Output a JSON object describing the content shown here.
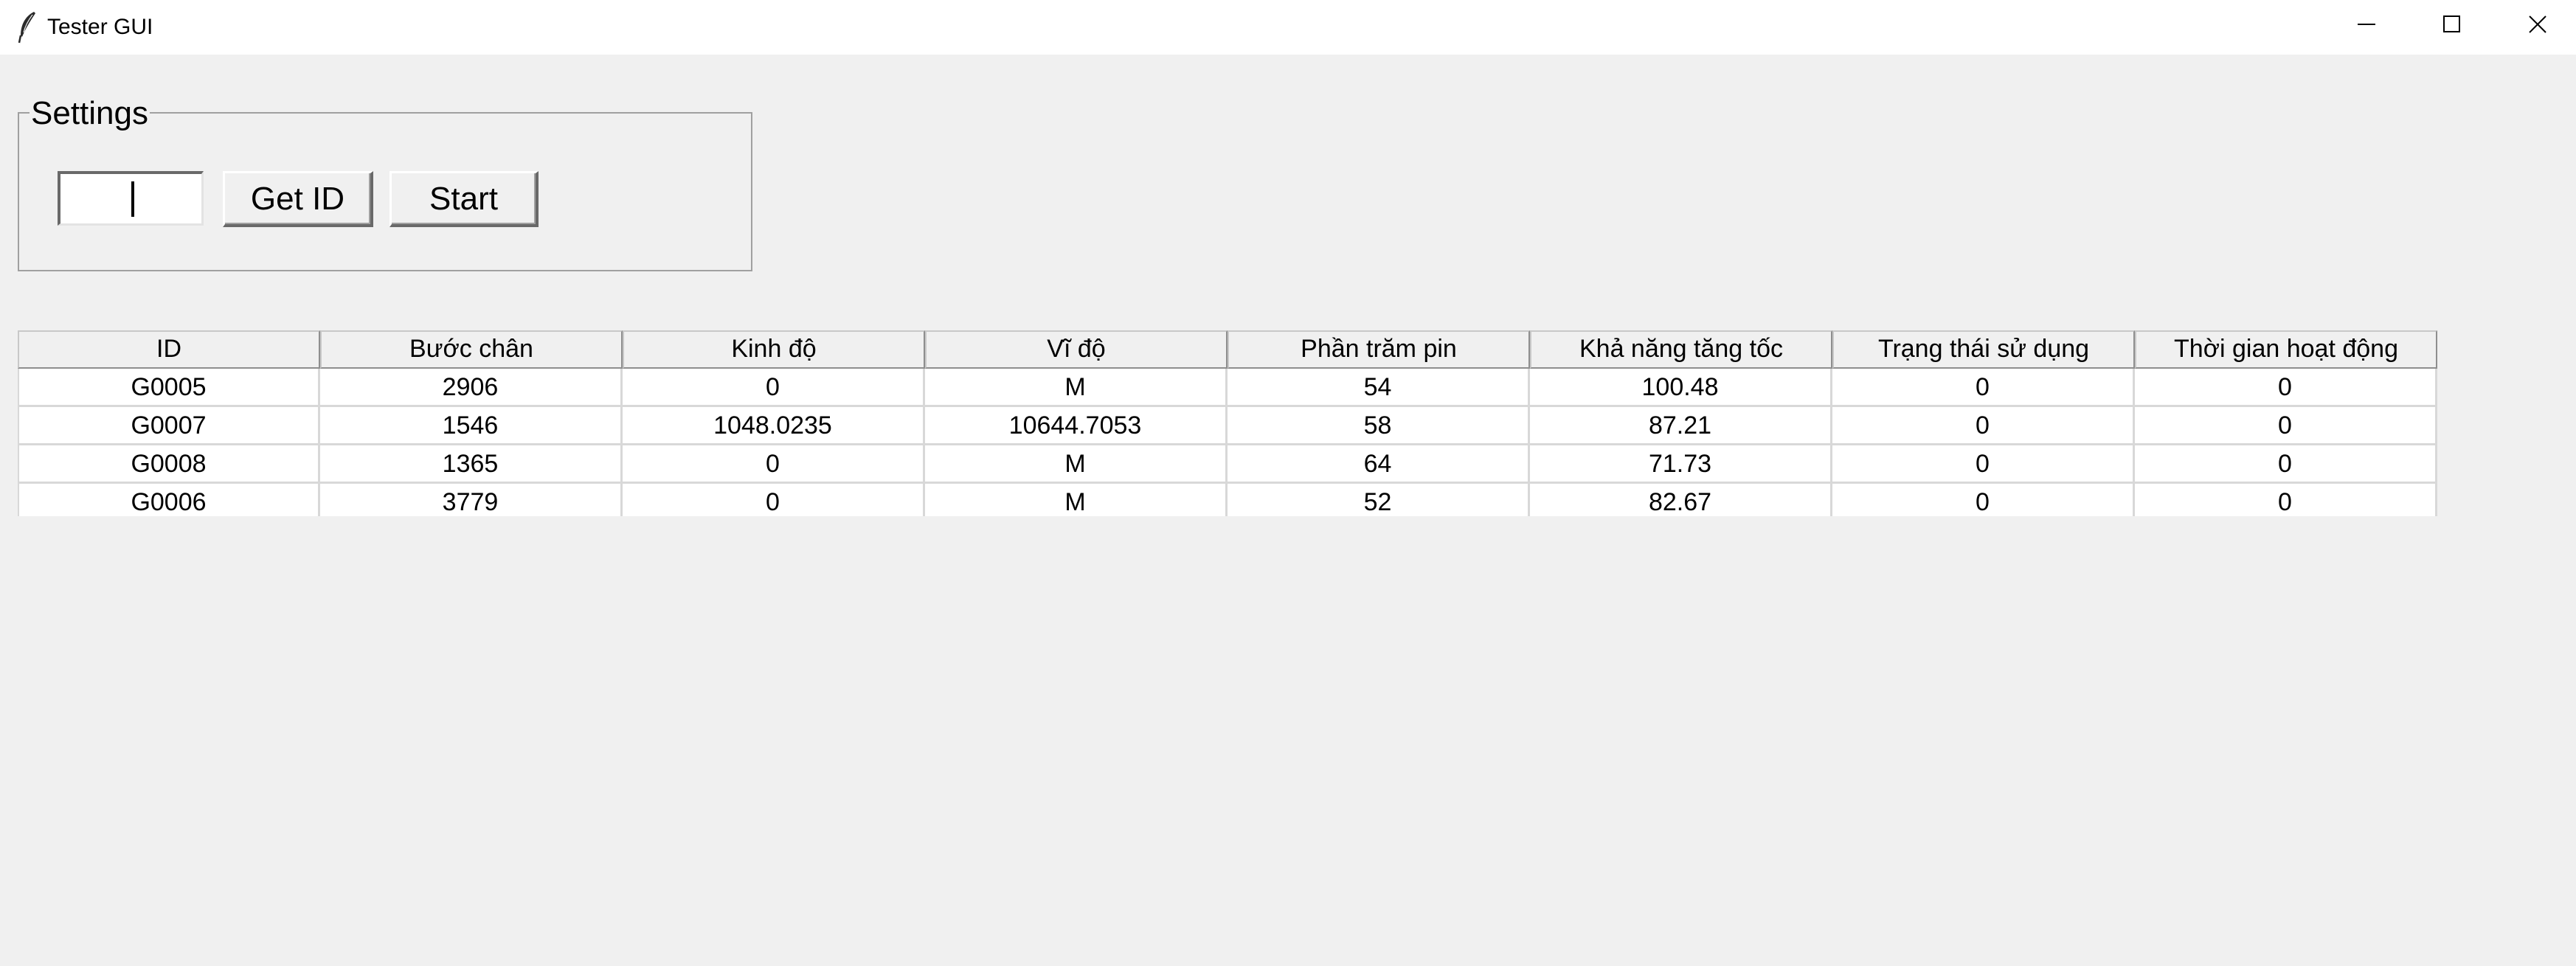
{
  "window": {
    "title": "Tester GUI"
  },
  "settings": {
    "legend": "Settings",
    "id_input_value": "",
    "get_id_label": "Get ID",
    "start_label": "Start"
  },
  "table": {
    "columns": [
      "ID",
      "Bước chân",
      "Kinh độ",
      "Vĩ độ",
      "Phần trăm pin",
      "Khả năng tăng tốc",
      "Trạng thái sử dụng",
      "Thời gian hoạt động"
    ],
    "rows": [
      [
        "G0005",
        "2906",
        "0",
        "M",
        "54",
        "100.48",
        "0",
        "0"
      ],
      [
        "G0007",
        "1546",
        "1048.0235",
        "10644.7053",
        "58",
        "87.21",
        "0",
        "0"
      ],
      [
        "G0008",
        "1365",
        "0",
        "M",
        "64",
        "71.73",
        "0",
        "0"
      ],
      [
        "G0006",
        "3779",
        "0",
        "M",
        "52",
        "82.67",
        "0",
        "0"
      ]
    ]
  },
  "icons": {
    "app": "feather-icon",
    "minimize": "minimize-icon",
    "maximize": "maximize-icon",
    "close": "close-icon"
  }
}
